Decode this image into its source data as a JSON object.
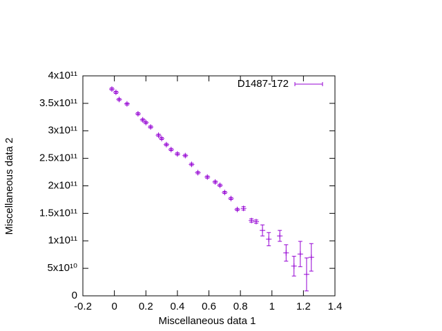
{
  "chart_data": {
    "type": "errorbar",
    "xlabel": "Miscellaneous data 1",
    "ylabel": "Miscellaneous data 2",
    "xlim": [
      -0.2,
      1.4
    ],
    "xticks": [
      -0.2,
      0,
      0.2,
      0.4,
      0.6,
      0.8,
      1,
      1.2,
      1.4
    ],
    "ylim": [
      0,
      400000000000
    ],
    "yticks": [
      0,
      {
        "value": 50000000000,
        "label": "5x10¹⁰"
      },
      {
        "value": 100000000000,
        "label": "1x10¹¹"
      },
      {
        "value": 150000000000,
        "label": "1.5x10¹¹"
      },
      {
        "value": 200000000000,
        "label": "2x10¹¹"
      },
      {
        "value": 250000000000,
        "label": "2.5x10¹¹"
      },
      {
        "value": 300000000000,
        "label": "3x10¹¹"
      },
      {
        "value": 350000000000,
        "label": "3.5x10¹¹"
      },
      {
        "value": 400000000000,
        "label": "4x10¹¹"
      }
    ],
    "legend": "top-right",
    "series": [
      {
        "name": "D1487-172",
        "color": "#9400d3",
        "x": [
          -0.016,
          0.01,
          0.03,
          0.08,
          0.15,
          0.18,
          0.2,
          0.23,
          0.28,
          0.3,
          0.33,
          0.36,
          0.4,
          0.45,
          0.49,
          0.53,
          0.59,
          0.64,
          0.67,
          0.7,
          0.74,
          0.78,
          0.82,
          0.87,
          0.9,
          0.94,
          0.98,
          1.05,
          1.09,
          1.14,
          1.18,
          1.22,
          1.25
        ],
        "values": [
          376000000000,
          370000000000,
          357000000000,
          349000000000,
          331000000000,
          320000000000,
          315000000000,
          307000000000,
          292000000000,
          286000000000,
          275000000000,
          266000000000,
          258000000000,
          255000000000,
          239000000000,
          224000000000,
          216000000000,
          207000000000,
          201000000000,
          188000000000,
          177000000000,
          157000000000,
          159000000000,
          137000000000,
          135000000000,
          119000000000,
          103000000000,
          109000000000,
          78000000000,
          54000000000,
          76000000000,
          39000000000,
          70000000000
        ],
        "errors": [
          2000000000,
          2000000000,
          2000000000,
          2000000000,
          2000000000,
          2000000000,
          2000000000,
          2000000000,
          2000000000,
          2000000000,
          2000000000,
          2000000000,
          2000000000,
          2000000000,
          2000000000,
          2000000000,
          2000000000,
          2000000000,
          2000000000,
          2000000000,
          2000000000,
          2000000000,
          3000000000,
          3000000000,
          3000000000,
          10000000000,
          12000000000,
          10000000000,
          15000000000,
          18000000000,
          23000000000,
          30000000000,
          25000000000
        ]
      }
    ]
  }
}
